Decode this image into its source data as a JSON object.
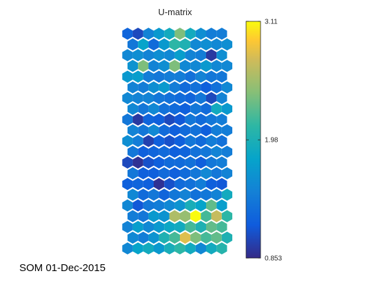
{
  "footer": "SOM 01-Dec-2015",
  "chart_data": {
    "type": "heatmap",
    "title": "U-matrix",
    "grid": "hexagonal",
    "cols": 10,
    "rows": 21,
    "colormap": "parula",
    "clim": [
      0.853,
      3.11
    ],
    "colorbar": {
      "location": "right",
      "ticks": [
        0.853,
        1.98,
        3.11
      ],
      "tick_labels": [
        "0.853",
        "1.98",
        "3.11"
      ]
    },
    "values": [
      [
        1.25,
        1.05,
        1.5,
        1.7,
        1.9,
        2.4,
        1.9,
        1.6,
        1.45,
        1.45
      ],
      [
        1.4,
        1.8,
        1.3,
        1.7,
        2.1,
        2.0,
        1.55,
        1.6,
        1.55,
        1.6
      ],
      [
        1.55,
        1.6,
        1.5,
        1.6,
        1.55,
        1.75,
        1.5,
        1.45,
        0.95,
        1.6
      ],
      [
        1.65,
        2.4,
        1.5,
        1.6,
        2.4,
        1.55,
        1.55,
        1.7,
        1.55,
        1.55
      ],
      [
        1.7,
        1.75,
        1.45,
        1.4,
        1.45,
        1.45,
        1.35,
        1.5,
        1.4,
        1.4
      ],
      [
        1.5,
        1.45,
        1.6,
        1.7,
        1.45,
        1.3,
        1.35,
        1.2,
        1.35,
        1.55
      ],
      [
        1.55,
        1.5,
        1.5,
        1.4,
        1.35,
        1.3,
        1.25,
        1.4,
        1.05,
        1.5
      ],
      [
        1.55,
        1.4,
        1.55,
        1.35,
        1.3,
        1.2,
        1.4,
        1.3,
        1.9,
        1.7
      ],
      [
        1.4,
        0.95,
        1.25,
        1.2,
        1.05,
        1.15,
        1.4,
        1.3,
        1.4,
        1.45
      ],
      [
        1.5,
        1.4,
        1.55,
        1.3,
        1.2,
        1.3,
        1.35,
        1.2,
        1.45,
        1.45
      ],
      [
        1.6,
        1.45,
        1.0,
        1.2,
        1.1,
        1.2,
        1.4,
        1.3,
        1.45,
        1.35
      ],
      [
        1.4,
        1.2,
        1.25,
        1.3,
        1.2,
        1.25,
        1.35,
        1.4,
        1.5,
        1.45
      ],
      [
        1.05,
        0.9,
        1.1,
        1.2,
        1.3,
        1.3,
        1.35,
        1.2,
        1.4,
        1.45
      ],
      [
        1.4,
        1.2,
        1.2,
        1.3,
        1.2,
        1.3,
        1.4,
        1.55,
        1.4,
        1.5
      ],
      [
        1.2,
        1.25,
        1.2,
        0.9,
        1.1,
        1.3,
        1.35,
        1.45,
        1.2,
        1.15
      ],
      [
        1.55,
        1.3,
        1.4,
        1.25,
        1.4,
        1.5,
        1.35,
        1.4,
        1.5,
        1.9
      ],
      [
        1.55,
        1.15,
        1.4,
        1.45,
        1.55,
        1.65,
        1.95,
        1.8,
        2.3,
        1.75
      ],
      [
        1.45,
        1.4,
        1.7,
        1.65,
        2.6,
        2.5,
        3.11,
        2.2,
        2.7,
        2.1
      ],
      [
        1.5,
        1.75,
        1.55,
        1.7,
        1.85,
        1.9,
        2.2,
        2.0,
        2.3,
        2.2
      ],
      [
        1.55,
        1.45,
        1.65,
        2.0,
        2.2,
        2.8,
        2.4,
        2.2,
        2.3,
        2.0
      ],
      [
        1.55,
        1.8,
        1.9,
        1.7,
        1.95,
        2.1,
        1.9,
        1.55,
        1.9,
        2.05
      ]
    ]
  }
}
